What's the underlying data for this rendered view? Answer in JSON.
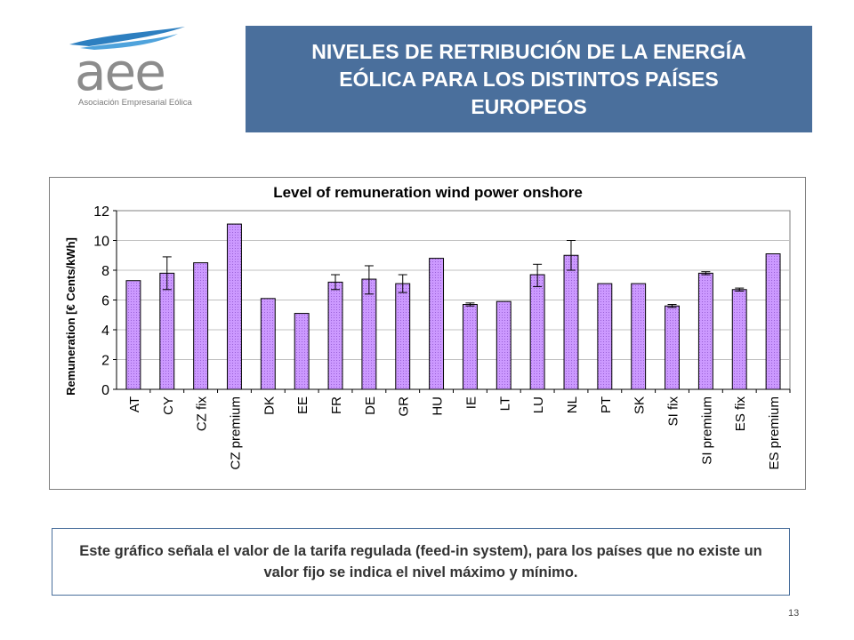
{
  "logo": {
    "text": "aee",
    "subtitle": "Asociación Empresarial Eólica"
  },
  "header": {
    "title": "NIVELES DE RETRIBUCIÓN DE LA ENERGÍA EÓLICA PARA LOS DISTINTOS PAÍSES EUROPEOS"
  },
  "chart_data": {
    "type": "bar",
    "title": "Level of remuneration wind power onshore",
    "xlabel": "",
    "ylabel": "Remuneration [€ Cents/kWh]",
    "ylim": [
      0,
      12
    ],
    "yticks": [
      0,
      2,
      4,
      6,
      8,
      10,
      12
    ],
    "grid": "horizontal",
    "legend": "none",
    "bar_color": "#cc99ff",
    "categories": [
      "AT",
      "CY",
      "CZ fix",
      "CZ premium",
      "DK",
      "EE",
      "FR",
      "DE",
      "GR",
      "HU",
      "IE",
      "LT",
      "LU",
      "NL",
      "PT",
      "SK",
      "SI fix",
      "SI premium",
      "ES fix",
      "ES premium"
    ],
    "values": [
      7.3,
      7.8,
      8.5,
      11.1,
      6.1,
      5.1,
      7.2,
      7.4,
      7.1,
      8.8,
      5.7,
      5.9,
      7.7,
      9.0,
      7.1,
      7.1,
      5.6,
      7.8,
      6.7,
      9.1
    ],
    "error_min": [
      null,
      6.7,
      null,
      null,
      null,
      null,
      6.7,
      6.4,
      6.5,
      null,
      5.6,
      null,
      6.9,
      8.0,
      null,
      null,
      5.5,
      7.7,
      6.6,
      null
    ],
    "error_max": [
      null,
      8.9,
      null,
      null,
      null,
      null,
      7.7,
      8.3,
      7.7,
      null,
      5.8,
      null,
      8.4,
      10.0,
      null,
      null,
      5.7,
      7.9,
      6.8,
      null
    ]
  },
  "note": {
    "text": "Este gráfico señala el valor de la tarifa regulada (feed-in system), para los países que no existe un valor fijo se indica el nivel máximo y mínimo."
  },
  "footer": {
    "page_number": "13"
  }
}
